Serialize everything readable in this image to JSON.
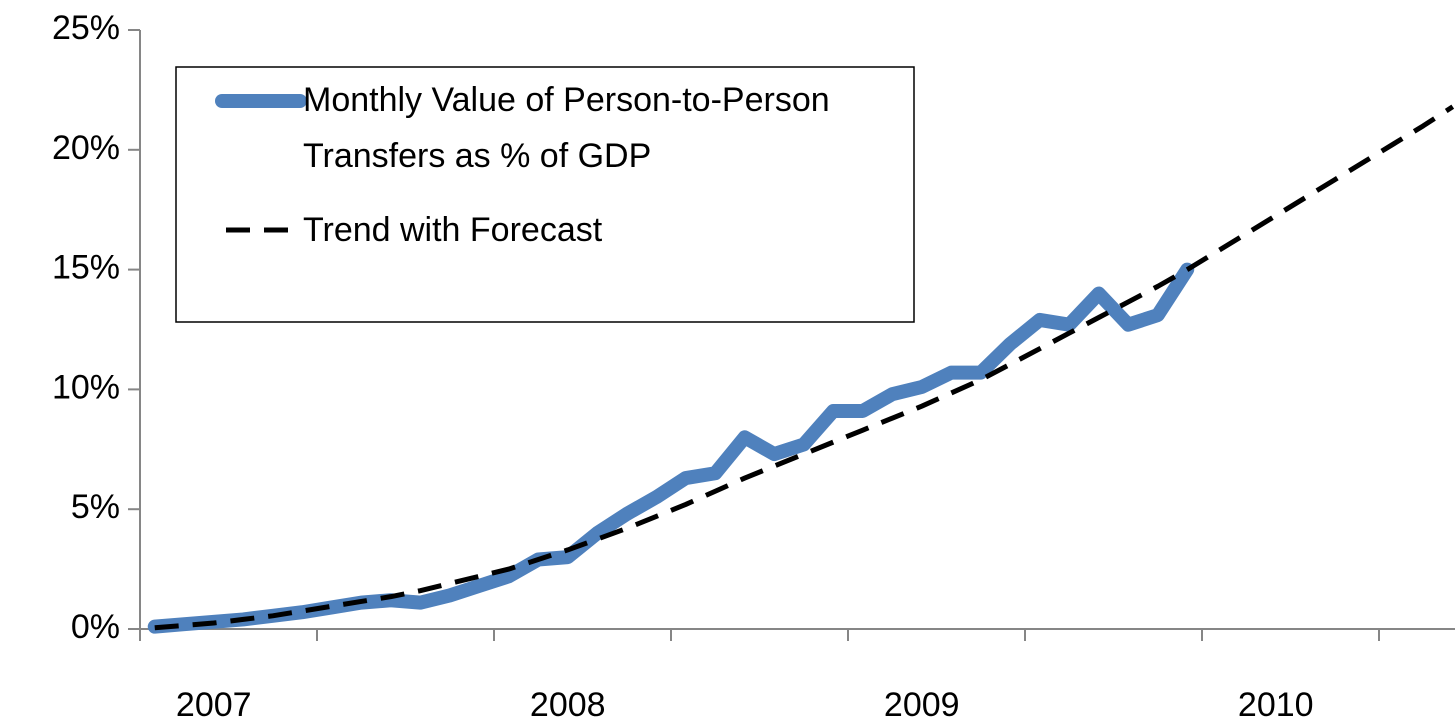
{
  "chart_data": {
    "type": "line",
    "categories": [
      null,
      null,
      "2007",
      null,
      null,
      null,
      null,
      null,
      null,
      null,
      null,
      null,
      null,
      null,
      "2008",
      null,
      null,
      null,
      null,
      null,
      null,
      null,
      null,
      null,
      null,
      null,
      "2009",
      null,
      null,
      null,
      null,
      null,
      null,
      null,
      null,
      null,
      null,
      null,
      "2010",
      null,
      null,
      null,
      null,
      null,
      null
    ],
    "series": [
      {
        "name": "Monthly Value of Person-to-Person Transfers as % of GDP",
        "color": "#4f81bd",
        "style": "solid",
        "values": [
          0.1,
          0.2,
          0.3,
          0.4,
          0.55,
          0.7,
          0.9,
          1.1,
          1.2,
          1.1,
          1.4,
          1.8,
          2.2,
          2.9,
          3.0,
          4.0,
          4.8,
          5.5,
          6.3,
          6.5,
          8.0,
          7.3,
          7.7,
          9.1,
          9.1,
          9.8,
          10.1,
          10.7,
          10.7,
          11.9,
          12.9,
          12.7,
          14.0,
          12.7,
          13.1,
          15.0,
          null,
          null,
          null,
          null,
          null,
          null,
          null,
          null,
          null
        ]
      },
      {
        "name": "Trend with Forecast",
        "color": "#000000",
        "style": "dashed",
        "values": [
          0.05,
          0.15,
          0.25,
          0.4,
          0.55,
          0.75,
          0.95,
          1.15,
          1.35,
          1.6,
          1.9,
          2.2,
          2.5,
          2.9,
          3.3,
          3.75,
          4.2,
          4.7,
          5.2,
          5.75,
          6.3,
          6.8,
          7.3,
          7.8,
          8.3,
          8.8,
          9.3,
          9.85,
          10.4,
          11.05,
          11.7,
          12.35,
          13.0,
          13.65,
          14.3,
          15.0,
          15.75,
          16.5,
          17.25,
          18.0,
          18.75,
          19.5,
          20.25,
          21.0,
          21.8
        ]
      }
    ],
    "ylim": [
      0,
      25
    ],
    "yticks": [
      {
        "value": 0,
        "label": "0%"
      },
      {
        "value": 5,
        "label": "5%"
      },
      {
        "value": 10,
        "label": "10%"
      },
      {
        "value": 15,
        "label": "15%"
      },
      {
        "value": 20,
        "label": "20%"
      },
      {
        "value": 25,
        "label": "25%"
      }
    ],
    "legend": "upper left"
  }
}
